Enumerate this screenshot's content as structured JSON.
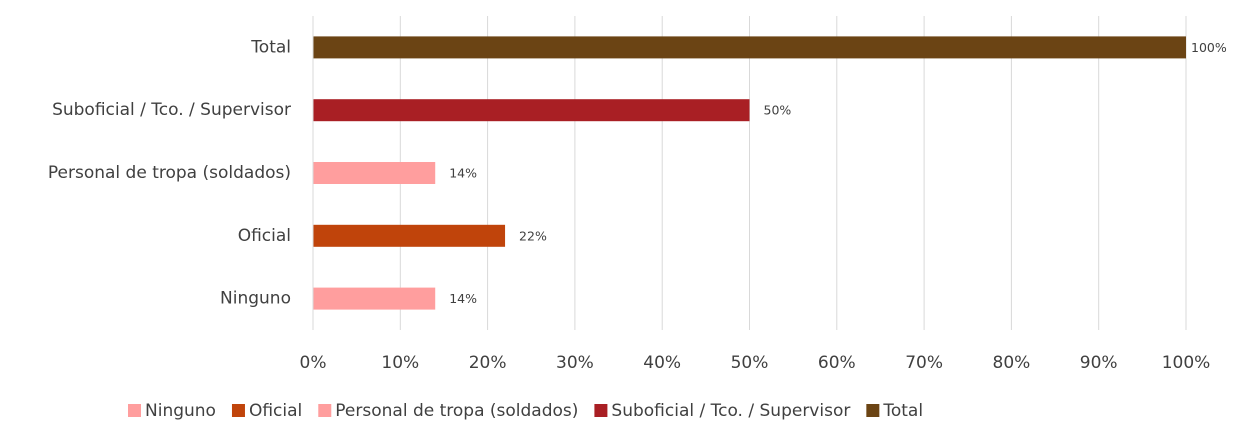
{
  "chart_data": {
    "type": "hbar",
    "categories": [
      "Ninguno",
      "Oficial",
      "Personal de tropa (soldados)",
      "Suboficial / Tco. / Supervisor",
      "Total"
    ],
    "values": [
      14,
      22,
      14,
      50,
      100
    ],
    "value_labels": [
      "14%",
      "22%",
      "14%",
      "50%",
      "100%"
    ],
    "colors": [
      "#ff9e9e",
      "#c0440b",
      "#ff9e9e",
      "#a91f24",
      "#6b4414"
    ],
    "xlim": [
      0,
      100
    ],
    "xticks": [
      {
        "value": 0,
        "label": "0%"
      },
      {
        "value": 10,
        "label": "10%"
      },
      {
        "value": 20,
        "label": "20%"
      },
      {
        "value": 30,
        "label": "30%"
      },
      {
        "value": 40,
        "label": "40%"
      },
      {
        "value": 50,
        "label": "50%"
      },
      {
        "value": 60,
        "label": "60%"
      },
      {
        "value": 70,
        "label": "70%"
      },
      {
        "value": 80,
        "label": "80%"
      },
      {
        "value": 90,
        "label": "90%"
      },
      {
        "value": 100,
        "label": "100%"
      }
    ],
    "grid": true,
    "legend": "bottom"
  }
}
